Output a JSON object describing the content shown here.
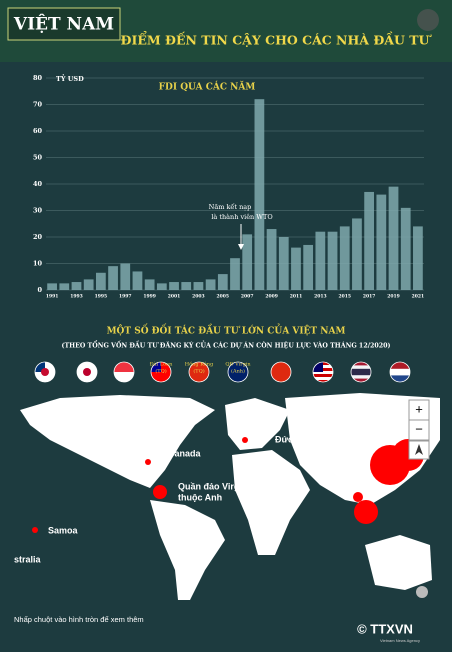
{
  "header": {
    "badge": "VIỆT NAM",
    "title": "ĐIỂM ĐẾN TIN CẬY CHO CÁC NHÀ ĐẦU TƯ"
  },
  "chart_data": {
    "type": "bar",
    "title": "FDI QUA CÁC NĂM",
    "y_label": "TỶ USD",
    "categories": [
      "1991",
      null,
      "1993",
      null,
      "1995",
      null,
      "1997",
      null,
      "1999",
      null,
      "2001",
      null,
      "2003",
      null,
      "2005",
      null,
      "2007",
      null,
      "2009",
      null,
      "2011",
      null,
      "2013",
      null,
      "2015",
      null,
      "2017",
      null,
      "2019",
      null,
      "2021"
    ],
    "values": [
      2.5,
      2.5,
      3,
      4,
      6.5,
      9,
      10,
      7,
      4,
      2.5,
      3,
      3,
      3,
      4,
      6,
      12,
      21,
      72,
      23,
      20,
      16,
      17,
      22,
      22,
      24,
      27,
      37,
      36,
      39,
      31,
      24
    ],
    "color": "#7fa9ad",
    "ylim": [
      0,
      80
    ],
    "yticks": [
      0,
      10,
      20,
      30,
      40,
      50,
      60,
      70,
      80
    ],
    "grid": true,
    "annotation": [
      "Năm kết nạp",
      "là thành viên WTO"
    ]
  },
  "partners": {
    "title": "MỘT SỐ ĐỐI TÁC ĐẦU TƯ LỚN CỦA VIỆT NAM",
    "subtitle": "(THEO TỔNG VỐN ĐẦU TƯ ĐĂNG KÝ CỦA CÁC DỰ ÁN CÒN HIỆU LỰC VÀO THÁNG 12/2020)",
    "labels": [
      [
        "Đài Loan",
        "(TQ)"
      ],
      [
        "Hồng Kông",
        "(TQ)"
      ],
      [
        "QĐ Virgin",
        "(Anh)"
      ]
    ]
  },
  "map": {
    "labels": [
      "Canada",
      "Đức",
      "Quần đảo Virgin",
      "thuộc Anh",
      "Samoa",
      "stralia"
    ],
    "zoom_in": "+",
    "zoom_out": "−"
  },
  "footer": {
    "hint": "Nhấp chuột vào hình tròn để xem thêm",
    "logo": "© TTXVN",
    "agency": "Vietnam News Agency"
  }
}
